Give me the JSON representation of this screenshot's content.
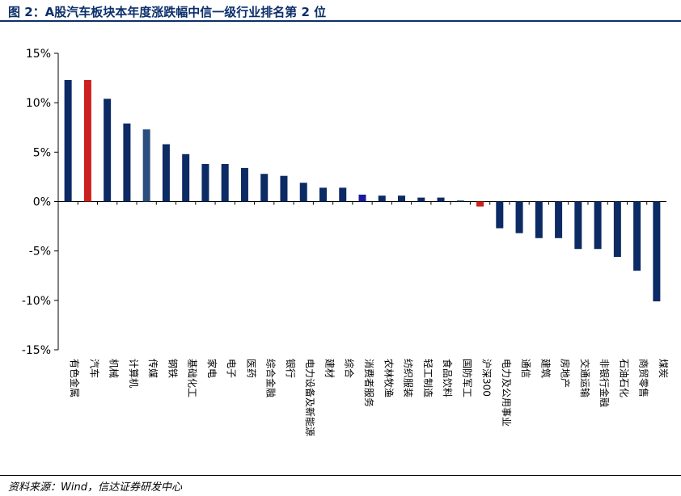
{
  "title": "图 2：A股汽车板块本年度涨跌幅中信一级行业排名第 2 位",
  "source": "资料来源：Wind，信达证券研发中心",
  "colors": {
    "default_bar": "#0c2a64",
    "highlight_red": "#cc1f1f",
    "highlight_blue": "#2a4f7f",
    "highlight_violet": "#1a1a9c",
    "title": "#0c2f6b"
  },
  "chart_data": {
    "type": "bar",
    "categories": [
      "有色金属",
      "汽车",
      "机械",
      "计算机",
      "传媒",
      "钢铁",
      "基础化工",
      "家电",
      "电子",
      "医药",
      "综合金融",
      "银行",
      "电力设备及新能源",
      "建材",
      "综合",
      "消费者服务",
      "农林牧渔",
      "纺织服装",
      "轻工制造",
      "食品饮料",
      "国防军工",
      "沪深300",
      "电力及公用事业",
      "通信",
      "建筑",
      "房地产",
      "交通运输",
      "非银行金融",
      "石油石化",
      "商贸零售",
      "煤炭"
    ],
    "values": [
      12.3,
      12.3,
      10.4,
      7.9,
      7.3,
      5.8,
      4.8,
      3.8,
      3.8,
      3.4,
      2.8,
      2.6,
      1.9,
      1.4,
      1.4,
      0.7,
      0.6,
      0.6,
      0.4,
      0.4,
      0.1,
      -0.5,
      -2.7,
      -3.2,
      -3.7,
      -3.7,
      -4.8,
      -4.8,
      -5.6,
      -7.0,
      -10.1
    ],
    "bar_colors": [
      "default_bar",
      "highlight_red",
      "default_bar",
      "default_bar",
      "highlight_blue",
      "default_bar",
      "default_bar",
      "default_bar",
      "default_bar",
      "default_bar",
      "default_bar",
      "default_bar",
      "default_bar",
      "default_bar",
      "default_bar",
      "highlight_violet",
      "default_bar",
      "default_bar",
      "default_bar",
      "default_bar",
      "default_bar",
      "highlight_red",
      "default_bar",
      "default_bar",
      "default_bar",
      "default_bar",
      "default_bar",
      "default_bar",
      "default_bar",
      "default_bar",
      "default_bar"
    ],
    "ylim": [
      -15,
      15
    ],
    "yticks": [
      15,
      10,
      5,
      0,
      -5,
      -10,
      -15
    ],
    "ytick_labels": [
      "15%",
      "10%",
      "5%",
      "0%",
      "-5%",
      "-10%",
      "-15%"
    ],
    "grid": false,
    "legend": "none"
  }
}
